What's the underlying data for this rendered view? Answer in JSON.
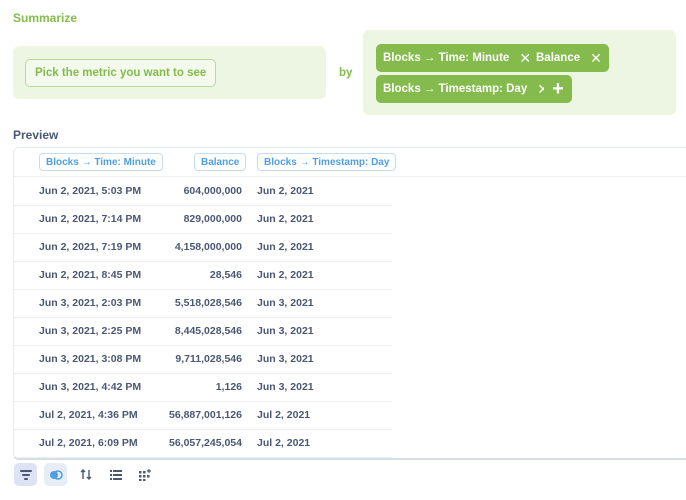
{
  "summarize": {
    "title": "Summarize",
    "metric_placeholder": "Pick the metric you want to see",
    "by_label": "by",
    "groupings": [
      {
        "label": "Blocks → Time: Minute",
        "remove": "✕"
      },
      {
        "label": "Balance",
        "remove": "✕"
      },
      {
        "label": "Blocks → Timestamp: Day",
        "remove": "✕"
      }
    ],
    "add_label": "+"
  },
  "preview": {
    "title": "Preview",
    "columns": [
      "Blocks → Time: Minute",
      "Balance",
      "Blocks → Timestamp: Day"
    ],
    "rows": [
      [
        "Jun 2, 2021, 5:03 PM",
        "604,000,000",
        "Jun 2, 2021"
      ],
      [
        "Jun 2, 2021, 7:14 PM",
        "829,000,000",
        "Jun 2, 2021"
      ],
      [
        "Jun 2, 2021, 7:19 PM",
        "4,158,000,000",
        "Jun 2, 2021"
      ],
      [
        "Jun 2, 2021, 8:45 PM",
        "28,546",
        "Jun 2, 2021"
      ],
      [
        "Jun 3, 2021, 2:03 PM",
        "5,518,028,546",
        "Jun 3, 2021"
      ],
      [
        "Jun 3, 2021, 2:25 PM",
        "8,445,028,546",
        "Jun 3, 2021"
      ],
      [
        "Jun 3, 2021, 3:08 PM",
        "9,711,028,546",
        "Jun 3, 2021"
      ],
      [
        "Jun 3, 2021, 4:42 PM",
        "1,126",
        "Jun 3, 2021"
      ],
      [
        "Jul 2, 2021, 4:36 PM",
        "56,887,001,126",
        "Jul 2, 2021"
      ],
      [
        "Jul 2, 2021, 6:09 PM",
        "56,057,245,054",
        "Jul 2, 2021"
      ]
    ]
  },
  "footer_icons": [
    "filter-icon",
    "toggle-icon",
    "sort-icon",
    "list-icon",
    "grid-icon"
  ],
  "colors": {
    "accent": "#84bb4c",
    "accent_light": "#edf6e3",
    "brand_blue": "#509ee3",
    "text": "#4c5773"
  }
}
